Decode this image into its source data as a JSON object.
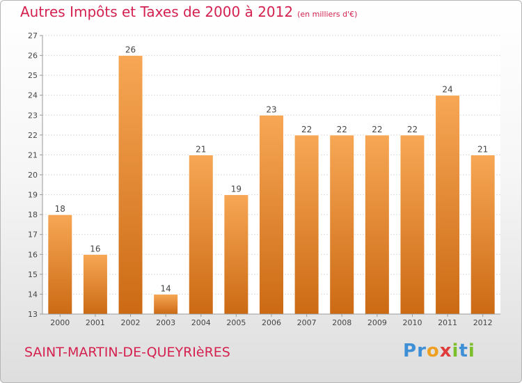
{
  "chart_data": {
    "type": "bar",
    "title": "Autres Impôts et Taxes de 2000 à 2012",
    "subtitle": "(en milliers d'€)",
    "categories": [
      "2000",
      "2001",
      "2002",
      "2003",
      "2004",
      "2005",
      "2006",
      "2007",
      "2008",
      "2009",
      "2010",
      "2011",
      "2012"
    ],
    "values": [
      18,
      16,
      26,
      14,
      21,
      19,
      23,
      22,
      22,
      22,
      22,
      24,
      21
    ],
    "ylim": [
      13,
      27
    ],
    "yticks": [
      13,
      14,
      15,
      16,
      17,
      18,
      19,
      20,
      21,
      22,
      23,
      24,
      25,
      26,
      27
    ],
    "grid": true,
    "bar_color_top": "#f7a755",
    "bar_color_bottom": "#cc6a14"
  },
  "footer": {
    "city": "SAINT-MARTIN-DE-QUEYRIèRES",
    "logo_letters": [
      {
        "ch": "P",
        "color": "#3f8fd6"
      },
      {
        "ch": "r",
        "color": "#3f8fd6"
      },
      {
        "ch": "o",
        "color": "#f0a020"
      },
      {
        "ch": "x",
        "color": "#e03c3c"
      },
      {
        "ch": "i",
        "color": "#7cbf2c"
      },
      {
        "ch": "t",
        "color": "#3f8fd6"
      },
      {
        "ch": "i",
        "color": "#7cbf2c"
      }
    ]
  }
}
